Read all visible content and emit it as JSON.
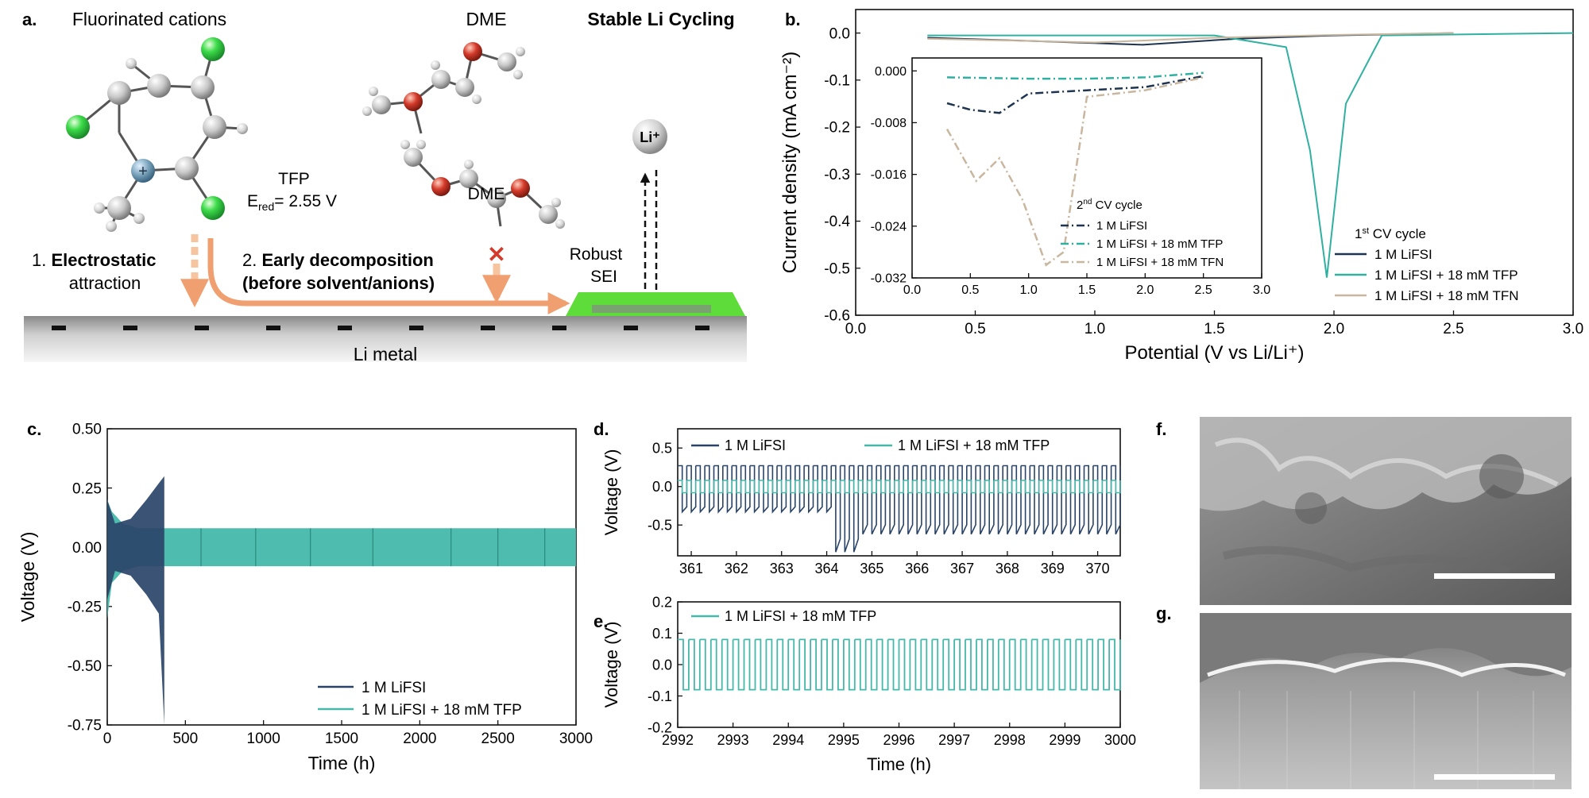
{
  "panel_a": {
    "letter": "a.",
    "title_cations": "Fluorinated cations",
    "title_dme": "DME",
    "title_stable": "Stable Li Cycling",
    "tfp": "TFP",
    "ered": "E",
    "ered_sub": "red",
    "ered_val": "= 2.55 V",
    "step1_num": "1. ",
    "step1_bold": "Electrostatic",
    "step1_rest": "attraction",
    "step2_num": "2. ",
    "step2_bold": "Early decomposition",
    "step2_rest": "(before solvent/anions)",
    "robust": "Robust",
    "sei": "SEI",
    "li_ion": "Li⁺",
    "cation_plus": "+",
    "li_metal": "Li metal",
    "cross": "✕",
    "colors": {
      "fluorine": "#3ddc4a",
      "carbon": "#c8c8c8",
      "oxygen": "#d43a2a",
      "nitrogen": "#7aa4bc",
      "arrow": "#f0a070",
      "sei": "#5ddc3a"
    }
  },
  "panel_b": {
    "letter": "b.",
    "chart_data": {
      "type": "line",
      "xlabel": "Potential (V vs Li/Li⁺)",
      "ylabel": "Current density (mA cm⁻²)",
      "xlim": [
        0.0,
        3.0
      ],
      "ylim": [
        -0.6,
        0.05
      ],
      "xticks": [
        "0.0",
        "0.5",
        "1.0",
        "1.5",
        "2.0",
        "2.5",
        "3.0"
      ],
      "yticks": [
        "0.0",
        "-0.1",
        "-0.2",
        "-0.3",
        "-0.4",
        "-0.5",
        "-0.6"
      ],
      "legend_title": "1st CV cycle",
      "series": [
        {
          "name": "1 M LiFSI",
          "color": "#1e3450",
          "x": [
            0.3,
            0.8,
            1.2,
            1.6,
            2.0,
            2.5
          ],
          "y": [
            -0.01,
            -0.018,
            -0.025,
            -0.012,
            -0.005,
            0.0
          ]
        },
        {
          "name": "1 M LiFSI + 18 mM TFP",
          "color": "#30b0a0",
          "x": [
            0.3,
            1.5,
            1.8,
            1.9,
            1.97,
            2.05,
            2.2,
            3.0
          ],
          "y": [
            -0.005,
            -0.005,
            -0.03,
            -0.25,
            -0.52,
            -0.15,
            -0.005,
            0.0
          ]
        },
        {
          "name": "1 M LiFSI + 18 mM TFN",
          "color": "#c8b69e",
          "x": [
            0.3,
            1.0,
            1.5,
            2.0,
            2.5
          ],
          "y": [
            -0.012,
            -0.02,
            -0.01,
            -0.004,
            0.0
          ]
        }
      ],
      "inset": {
        "xlim": [
          0.0,
          3.0
        ],
        "ylim": [
          -0.032,
          0.002
        ],
        "xticks": [
          "0.0",
          "0.5",
          "1.0",
          "1.5",
          "2.0",
          "2.5",
          "3.0"
        ],
        "yticks": [
          "0.000",
          "-0.008",
          "-0.016",
          "-0.024",
          "-0.032"
        ],
        "legend_title": "2nd CV cycle",
        "series": [
          {
            "name": "1 M LiFSI",
            "color": "#1e3450",
            "x": [
              0.3,
              0.5,
              0.75,
              1.0,
              1.5,
              2.0,
              2.5
            ],
            "y": [
              -0.005,
              -0.006,
              -0.0065,
              -0.0035,
              -0.003,
              -0.0025,
              -0.0008
            ]
          },
          {
            "name": "1 M LiFSI + 18 mM TFP",
            "color": "#30b0a0",
            "x": [
              0.3,
              1.0,
              1.5,
              2.0,
              2.5
            ],
            "y": [
              -0.001,
              -0.0012,
              -0.0012,
              -0.001,
              -0.0003
            ]
          },
          {
            "name": "1 M LiFSI + 18 mM TFN",
            "color": "#c8b69e",
            "x": [
              0.3,
              0.55,
              0.75,
              0.95,
              1.15,
              1.3,
              1.5,
              2.0,
              2.5
            ],
            "y": [
              -0.009,
              -0.017,
              -0.0135,
              -0.02,
              -0.03,
              -0.028,
              -0.004,
              -0.003,
              -0.001
            ]
          }
        ]
      }
    }
  },
  "panel_c": {
    "letter": "c.",
    "chart_data": {
      "type": "line",
      "xlabel": "Time (h)",
      "ylabel": "Voltage (V)",
      "xlim": [
        0,
        3000
      ],
      "ylim": [
        -0.75,
        0.5
      ],
      "xticks": [
        "0",
        "500",
        "1000",
        "1500",
        "2000",
        "2500",
        "3000"
      ],
      "yticks": [
        "0.50",
        "0.25",
        "0.00",
        "-0.25",
        "-0.50",
        "-0.75"
      ],
      "series": [
        {
          "name": "1 M LiFSI",
          "color": "#2a4468",
          "x": [
            0,
            50,
            150,
            250,
            330,
            365
          ],
          "y_upper": [
            0.2,
            0.1,
            0.12,
            0.2,
            0.27,
            0.3
          ],
          "y_lower": [
            -0.22,
            -0.1,
            -0.12,
            -0.2,
            -0.28,
            -0.75
          ]
        },
        {
          "name": "1 M LiFSI + 18 mM TFP",
          "color": "#45b8aa",
          "x": [
            0,
            30,
            100,
            200,
            3000
          ],
          "y_upper": [
            0.2,
            0.15,
            0.1,
            0.08,
            0.08
          ],
          "y_lower": [
            -0.3,
            -0.15,
            -0.1,
            -0.08,
            -0.08
          ]
        }
      ]
    }
  },
  "panel_d": {
    "letter": "d.",
    "chart_data": {
      "type": "line",
      "xlabel": "",
      "ylabel": "Voltage (V)",
      "xlim": [
        360.7,
        370.5
      ],
      "ylim": [
        -0.9,
        0.75
      ],
      "xticks": [
        "361",
        "362",
        "363",
        "364",
        "365",
        "366",
        "367",
        "368",
        "369",
        "370"
      ],
      "yticks": [
        "0.5",
        "0.0",
        "-0.5"
      ],
      "series": [
        {
          "name": "1 M LiFSI",
          "color": "#2a4468",
          "cycle_h": 0.2,
          "upper": 0.27,
          "lower_before_364": -0.33,
          "lower_after_364": -0.62,
          "lower_at_364": -0.85
        },
        {
          "name": "1 M LiFSI + 18 mM TFP",
          "color": "#45b8aa",
          "amplitude": 0.08
        }
      ]
    }
  },
  "panel_e": {
    "letter": "e.",
    "chart_data": {
      "type": "line",
      "xlabel": "Time (h)",
      "ylabel": "Voltage (V)",
      "xlim": [
        2992,
        3000
      ],
      "ylim": [
        -0.2,
        0.2
      ],
      "xticks": [
        "2992",
        "2993",
        "2994",
        "2995",
        "2996",
        "2997",
        "2998",
        "2999",
        "3000"
      ],
      "yticks": [
        "0.2",
        "0.1",
        "0.0",
        "-0.1",
        "-0.2"
      ],
      "series": [
        {
          "name": "1 M LiFSI + 18 mM TFP",
          "color": "#45b8aa",
          "cycle_h": 0.2,
          "upper": 0.08,
          "lower": -0.08
        }
      ]
    }
  },
  "panel_f": {
    "letter": "f."
  },
  "panel_g": {
    "letter": "g."
  }
}
